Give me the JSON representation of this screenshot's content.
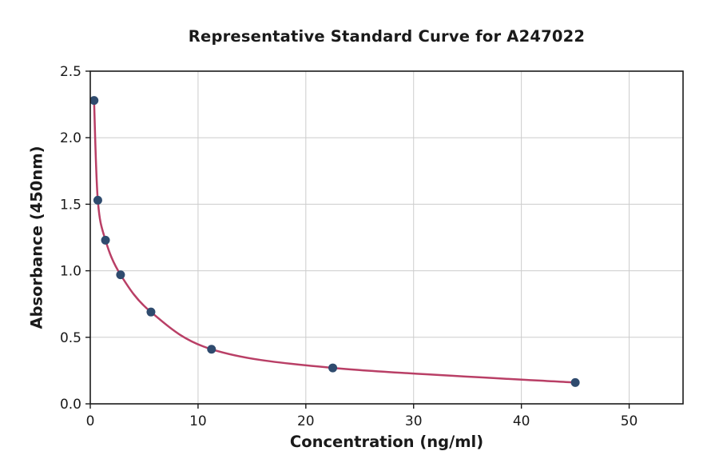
{
  "chart_data": {
    "type": "scatter",
    "title": "Representative Standard Curve for A247022",
    "xlabel": "Concentration (ng/ml)",
    "ylabel": "Absorbance (450nm)",
    "series": [
      {
        "name": "standard-curve-points",
        "x": [
          0.35,
          0.7,
          1.41,
          2.81,
          5.63,
          11.25,
          22.5,
          45
        ],
        "y": [
          2.28,
          1.53,
          1.23,
          0.97,
          0.69,
          0.41,
          0.27,
          0.16
        ]
      }
    ],
    "fit_line": "smooth 4PL-style curve drawn through the data points from x=0.35 to x=45",
    "xlim": [
      0,
      55
    ],
    "ylim": [
      0,
      2.5
    ],
    "xticks": {
      "values": [
        0,
        10,
        20,
        30,
        40,
        50
      ],
      "labels": [
        "0",
        "10",
        "20",
        "30",
        "40",
        "50"
      ]
    },
    "yticks": {
      "values": [
        0,
        0.5,
        1.0,
        1.5,
        2.0,
        2.5
      ],
      "labels": [
        "0.0",
        "0.5",
        "1.0",
        "1.5",
        "2.0",
        "2.5"
      ]
    },
    "grid": true,
    "legend": "none",
    "styles": {
      "curve_color": "#b93f66",
      "marker_color": "#2f4b6e",
      "grid_color": "#cccccc",
      "axis_color": "#1a1a1a",
      "background": "#ffffff",
      "marker_radius": 5.5,
      "curve_width": 2.5
    }
  }
}
